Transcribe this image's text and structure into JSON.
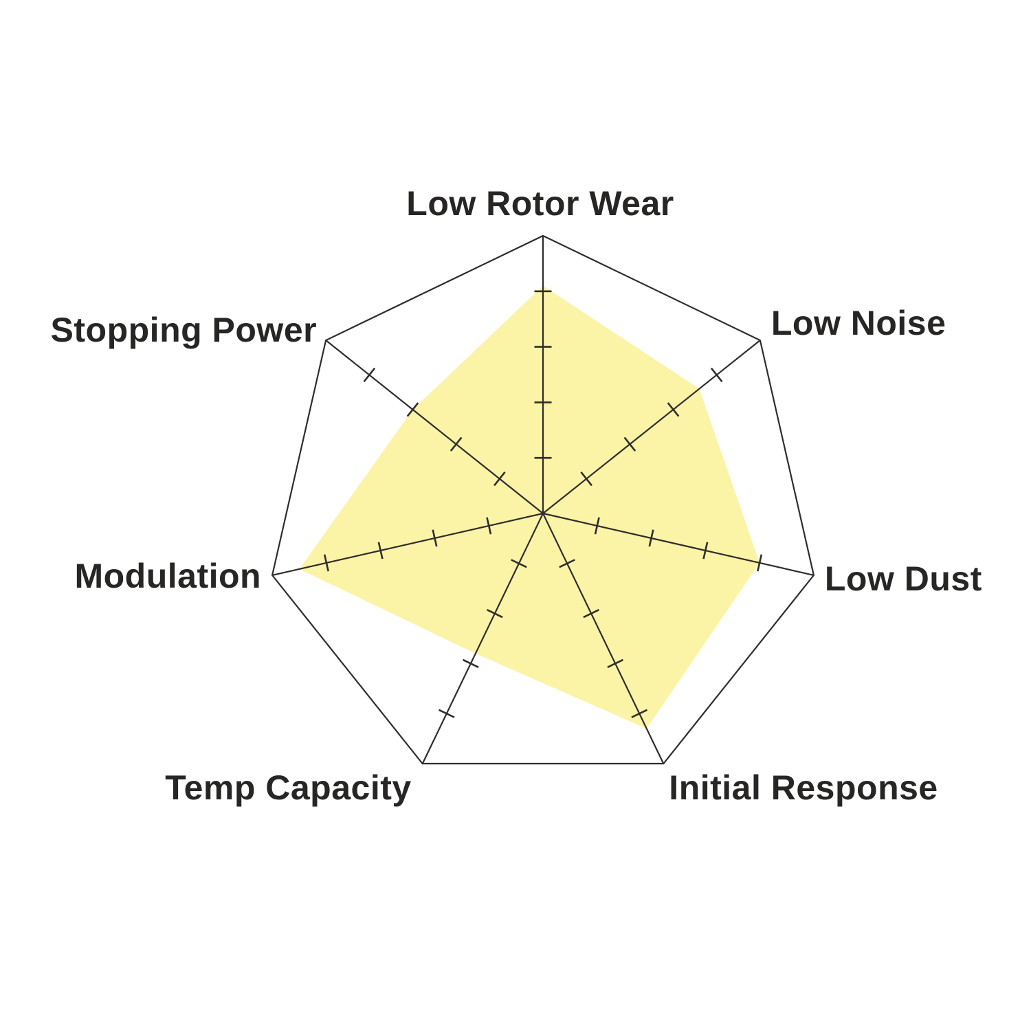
{
  "chart_data": {
    "type": "radar",
    "title": "",
    "categories": [
      "Low Rotor Wear",
      "Low Noise",
      "Low Dust",
      "Initial Response",
      "Temp Capacity",
      "Modulation",
      "Stopping Power"
    ],
    "values": [
      4.1,
      3.6,
      4.0,
      4.3,
      2.8,
      4.5,
      3.0
    ],
    "scale": {
      "min": 0,
      "max": 5,
      "ticks": [
        1,
        2,
        3,
        4
      ]
    },
    "grid": "spokes-with-ticks-no-rings",
    "legend": "none",
    "fill_color": "#FBF3A6",
    "line_color": "#2E2D2B",
    "label_color": "#272624",
    "background_color": "#FFFFFF"
  }
}
